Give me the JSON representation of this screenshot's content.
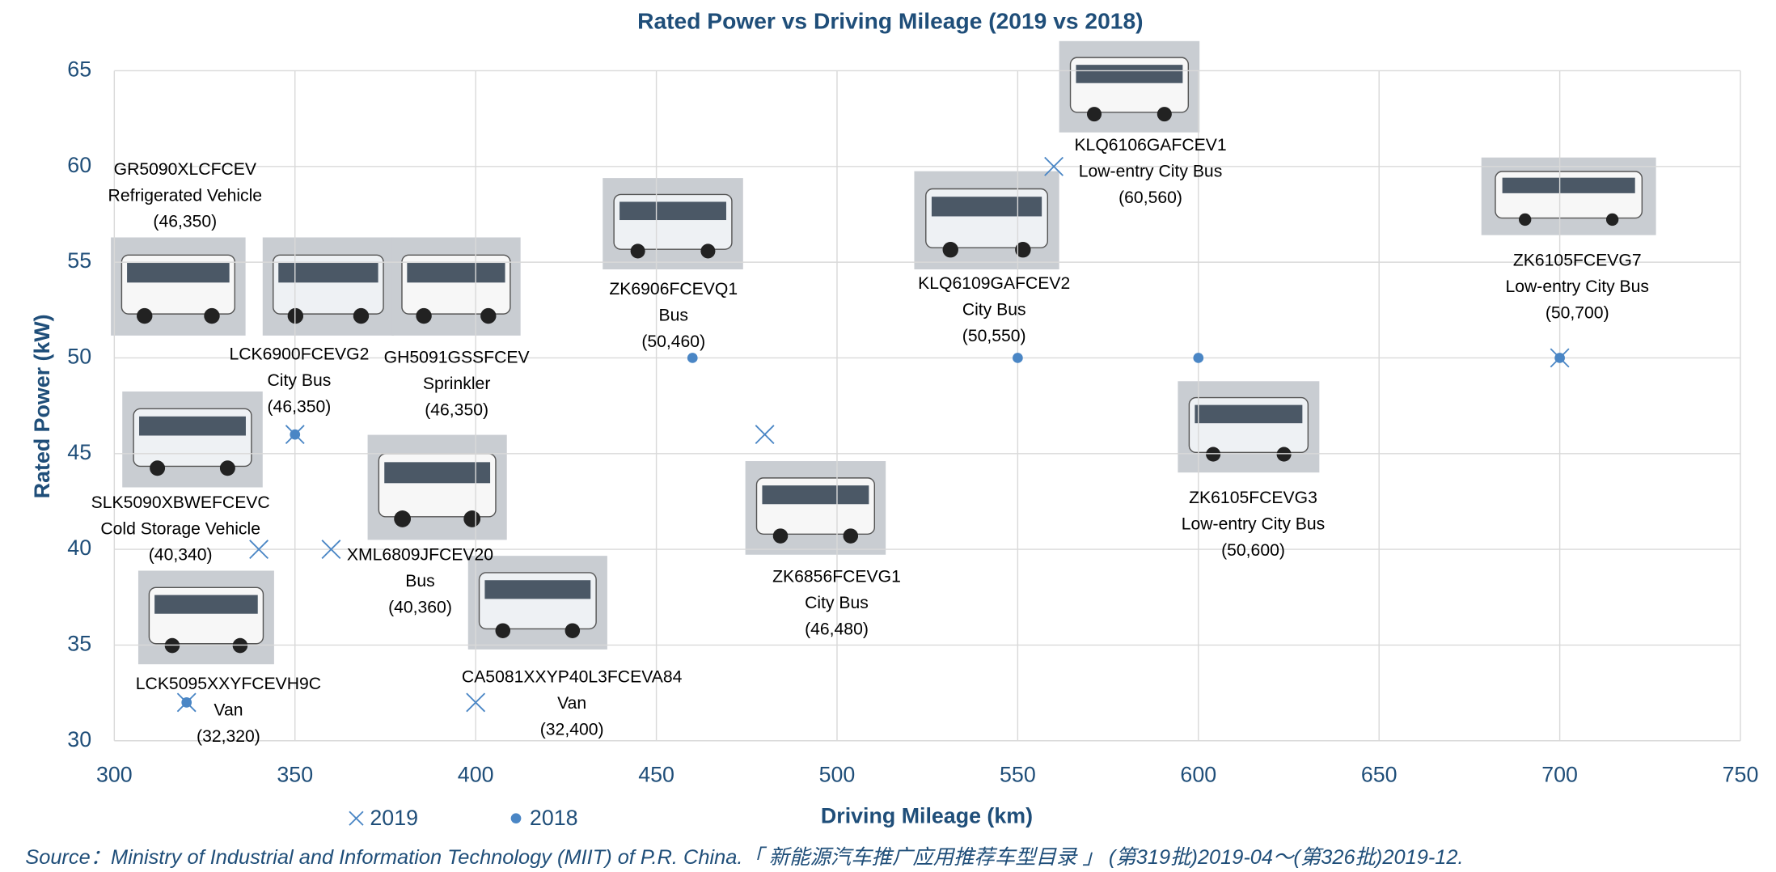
{
  "chart_data": {
    "type": "scatter",
    "title": "Rated Power vs Driving Mileage (2019 vs 2018)",
    "xlabel": "Driving Mileage (km)",
    "ylabel": "Rated Power (kW)",
    "xlim": [
      300,
      750
    ],
    "xticks": [
      300,
      350,
      400,
      450,
      500,
      550,
      600,
      650,
      700,
      750
    ],
    "ylim": [
      30,
      65
    ],
    "yticks": [
      30,
      35,
      40,
      45,
      50,
      55,
      60,
      65
    ],
    "grid": true,
    "series": [
      {
        "name": "2019",
        "color": "#4a86c5",
        "marker": "x",
        "x": [
          350,
          340,
          360,
          400,
          320,
          480,
          560,
          700
        ],
        "values": [
          46,
          40,
          40,
          32,
          32,
          46,
          60,
          50
        ]
      },
      {
        "name": "2018",
        "color": "#4a86c5",
        "marker": "circle",
        "x": [
          350,
          320,
          460,
          550,
          600,
          700
        ],
        "values": [
          46,
          32,
          50,
          50,
          50,
          50
        ]
      }
    ],
    "annotations": [
      [
        "GR5090XLCFCEV",
        "Refrigerated Vehicle",
        "(46,350)"
      ],
      [
        "LCK6900FCEVG2",
        "City Bus",
        "(46,350)"
      ],
      [
        "GH5091GSSFCEV",
        "Sprinkler",
        "(46,350)"
      ],
      [
        "SLK5090XBWEFCEVC",
        "Cold Storage Vehicle",
        "(40,340)"
      ],
      [
        "XML6809JFCEV20",
        "Bus",
        "(40,360)"
      ],
      [
        "CA5081XXYP40L3FCEVA84",
        "Van",
        "(32,400)"
      ],
      [
        "LCK5095XXYFCEVH9C",
        "Van",
        "(32,320)"
      ],
      [
        "ZK6906FCEVQ1",
        "Bus",
        "(50,460)"
      ],
      [
        "ZK6856FCEVG1",
        "City Bus",
        "(46,480)"
      ],
      [
        "KLQ6109GAFCEV2",
        "City Bus",
        "(50,550)"
      ],
      [
        "KLQ6106GAFCEV1",
        "Low-entry City Bus",
        "(60,560)"
      ],
      [
        "ZK6105FCEVG3",
        "Low-entry City Bus",
        "(50,600)"
      ],
      [
        "ZK6105FCEVG7",
        "Low-entry City Bus",
        "(50,700)"
      ]
    ],
    "source": "Source：Ministry of Industrial and Information Technology (MIIT) of  P.R. China.「 新能源汽车推广应用推荐车型目录 」 (第319批)2019-04～(第326批)2019-12."
  }
}
